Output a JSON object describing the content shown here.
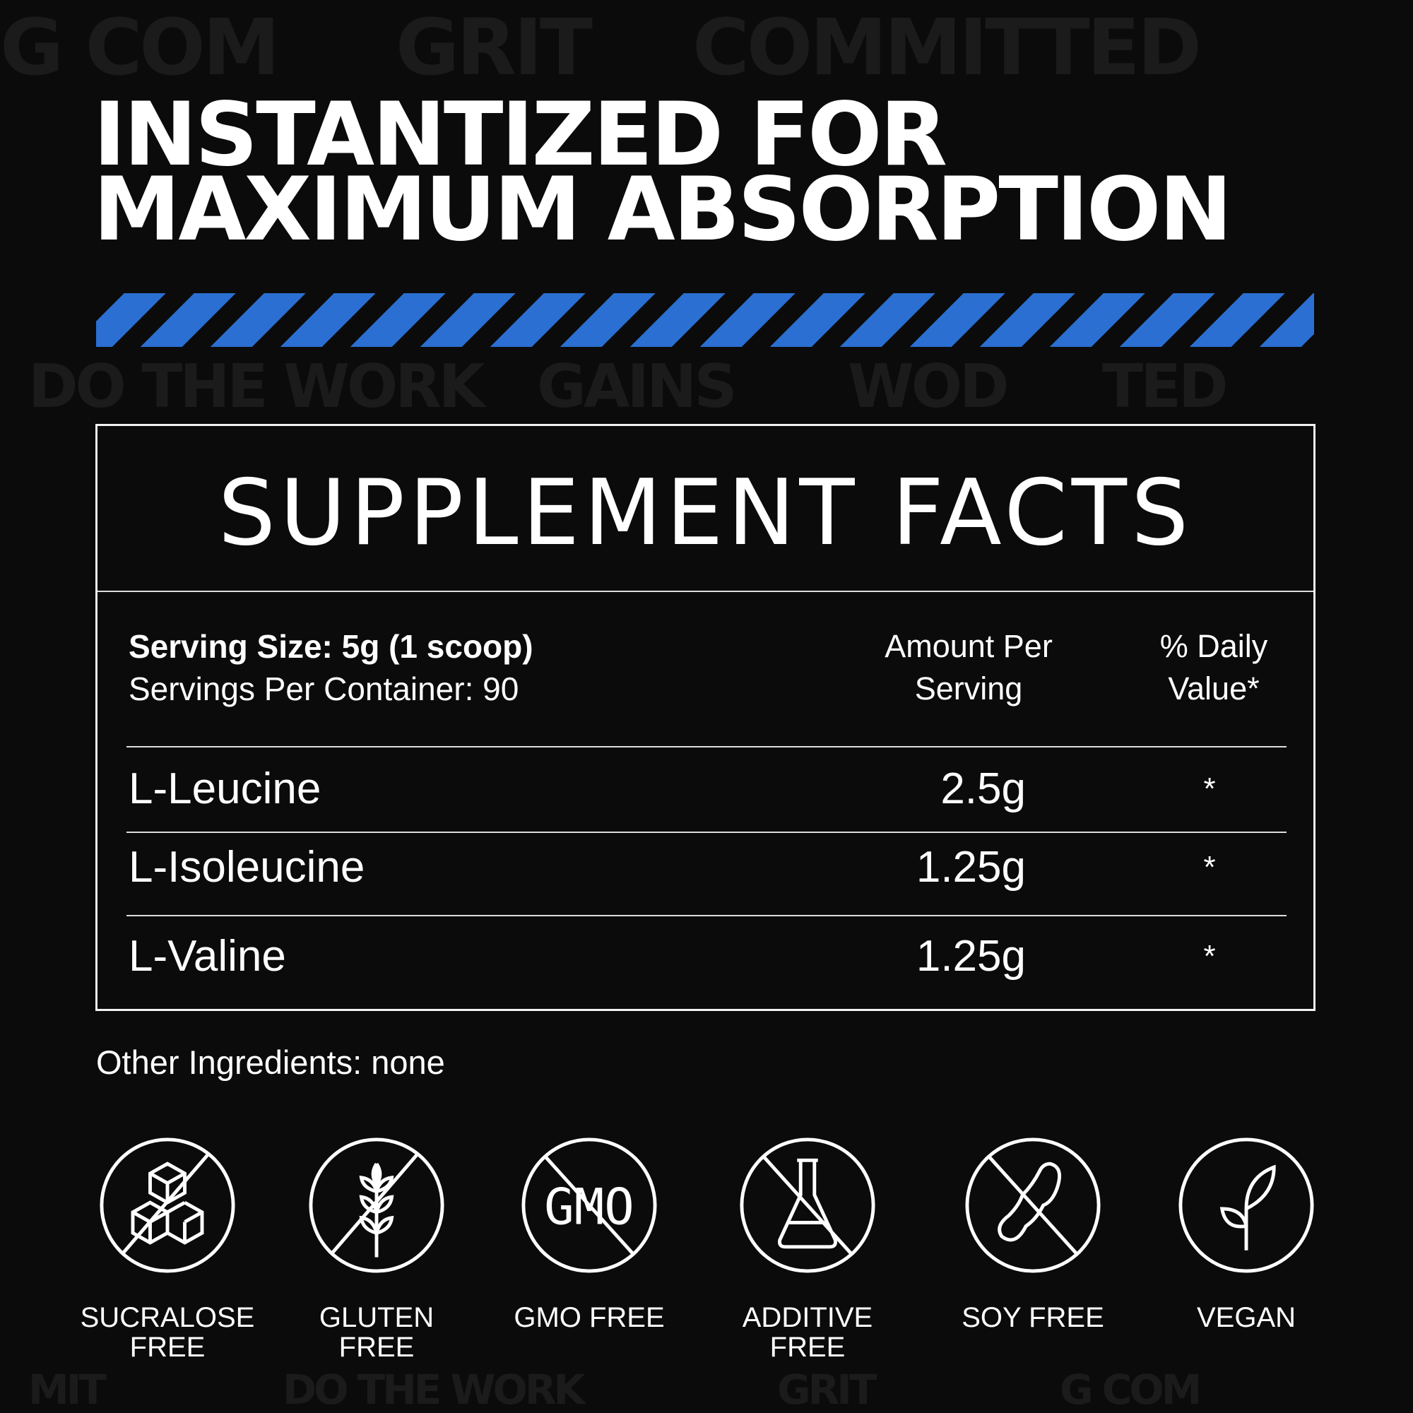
{
  "background_words": [
    "GRIT",
    "WOD",
    "GAINS",
    "COMMITTED",
    "DO THE WORK",
    "G COM",
    "MIT",
    "TED"
  ],
  "headline": {
    "line1": "INSTANTIZED FOR",
    "line2": "MAXIMUM ABSORPTION"
  },
  "accent_color": "#2a6fd1",
  "facts": {
    "title": "SUPPLEMENT FACTS",
    "serving_size": "Serving Size: 5g (1 scoop)",
    "servings_per_container": "Servings Per Container: 90",
    "col_amount": [
      "Amount Per",
      "Serving"
    ],
    "col_daily": [
      "% Daily",
      "Value*"
    ],
    "rows": [
      {
        "name": "L-Leucine",
        "amount": "2.5g",
        "dv": "*"
      },
      {
        "name": "L-Isoleucine",
        "amount": "1.25g",
        "dv": "*"
      },
      {
        "name": "L-Valine",
        "amount": "1.25g",
        "dv": "*"
      }
    ]
  },
  "other_ingredients": "Other Ingredients: none",
  "badges": [
    {
      "icon": "sugar-cubes-crossed-icon",
      "line1": "SUCRALOSE",
      "line2": "FREE"
    },
    {
      "icon": "wheat-crossed-icon",
      "line1": "GLUTEN",
      "line2": "FREE"
    },
    {
      "icon": "gmo-crossed-icon",
      "line1": "GMO FREE",
      "line2": "",
      "icon_text": "GMO"
    },
    {
      "icon": "flask-crossed-icon",
      "line1": "ADDITIVE",
      "line2": "FREE"
    },
    {
      "icon": "soybean-crossed-icon",
      "line1": "SOY FREE",
      "line2": ""
    },
    {
      "icon": "sprout-icon",
      "line1": "VEGAN",
      "line2": ""
    }
  ]
}
